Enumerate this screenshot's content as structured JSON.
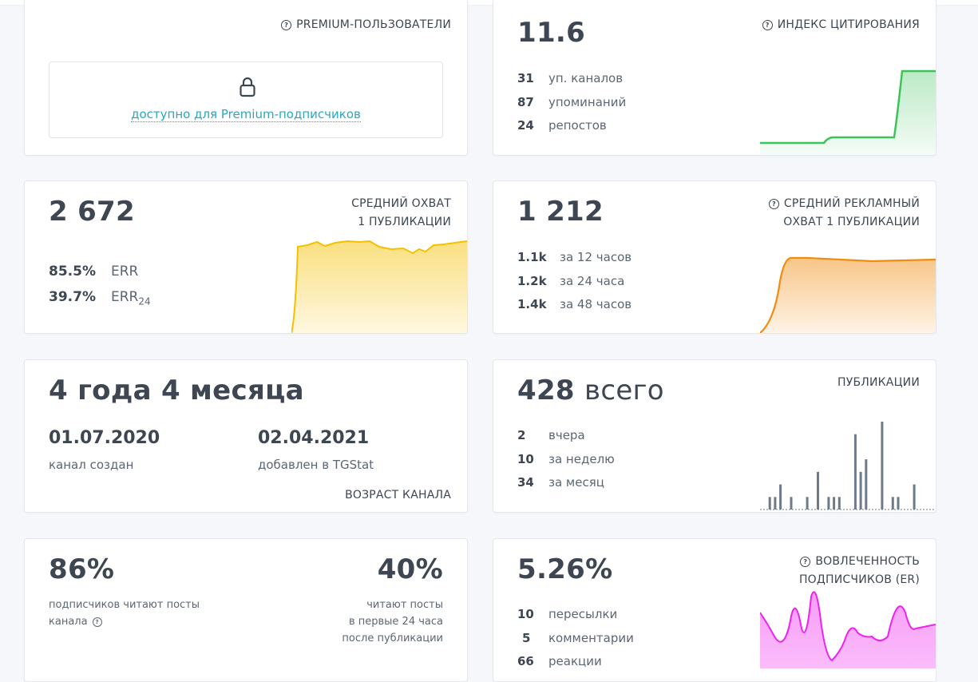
{
  "premium_users": {
    "label": "PREMIUM-ПОЛЬЗОВАТЕЛИ",
    "locked_link": "доступно для Premium-подписчиков"
  },
  "citation": {
    "value": "11.6",
    "label": "ИНДЕКС ЦИТИРОВАНИЯ",
    "stats": [
      {
        "num": "31",
        "text": "уп. каналов"
      },
      {
        "num": "87",
        "text": "упоминаний"
      },
      {
        "num": "24",
        "text": "репостов"
      }
    ],
    "color": "#3cc35a"
  },
  "avg_reach": {
    "value": "2 672",
    "label_line1": "СРЕДНИЙ ОХВАТ",
    "label_line2": "1 ПУБЛИКАЦИИ",
    "err_value": "85.5%",
    "err_label": "ERR",
    "err24_value": "39.7%",
    "err24_label": "ERR",
    "err24_sub": "24",
    "color": "#f5c000"
  },
  "ad_reach": {
    "value": "1 212",
    "label_line1": "СРЕДНИЙ РЕКЛАМНЫЙ",
    "label_line2": "ОХВАТ 1 ПУБЛИКАЦИИ",
    "stats": [
      {
        "num": "1.1k",
        "text": "за 12 часов"
      },
      {
        "num": "1.2k",
        "text": "за 24 часа"
      },
      {
        "num": "1.4k",
        "text": "за 48 часов"
      }
    ],
    "color": "#f08c10"
  },
  "age": {
    "value": "4 года 4 месяца",
    "created_date": "01.07.2020",
    "created_caption": "канал создан",
    "added_date": "02.04.2021",
    "added_caption": "добавлен в TGStat",
    "label": "ВОЗРАСТ КАНАЛА"
  },
  "publications": {
    "value": "428",
    "value_suffix": "всего",
    "label": "ПУБЛИКАЦИИ",
    "stats": [
      {
        "num": "2",
        "text": "вчера"
      },
      {
        "num": "10",
        "text": "за неделю"
      },
      {
        "num": "34",
        "text": "за месяц"
      }
    ],
    "bars": [
      0,
      1,
      1,
      2,
      0,
      1,
      0,
      0,
      1,
      0,
      3,
      0,
      1,
      1,
      1,
      0,
      0,
      6,
      3,
      4,
      0,
      0,
      7,
      0,
      1,
      1,
      0,
      0,
      2
    ],
    "color": "#6c7a89"
  },
  "readers": {
    "left_value": "86%",
    "left_caption_line1": "подписчиков читают посты",
    "left_caption_line2": "канала",
    "right_value": "40%",
    "right_caption_line1": "читают посты",
    "right_caption_line2": "в первые 24 часа",
    "right_caption_line3": "после публикации"
  },
  "engagement": {
    "value": "5.26%",
    "label_line1": "ВОВЛЕЧЕННОСТЬ",
    "label_line2": "ПОДПИСЧИКОВ (ER)",
    "stats": [
      {
        "num": "10",
        "text": "пересылки"
      },
      {
        "num": "5",
        "text": "комментарии"
      },
      {
        "num": "66",
        "text": "реакции"
      }
    ],
    "color": "#ee22ee"
  }
}
